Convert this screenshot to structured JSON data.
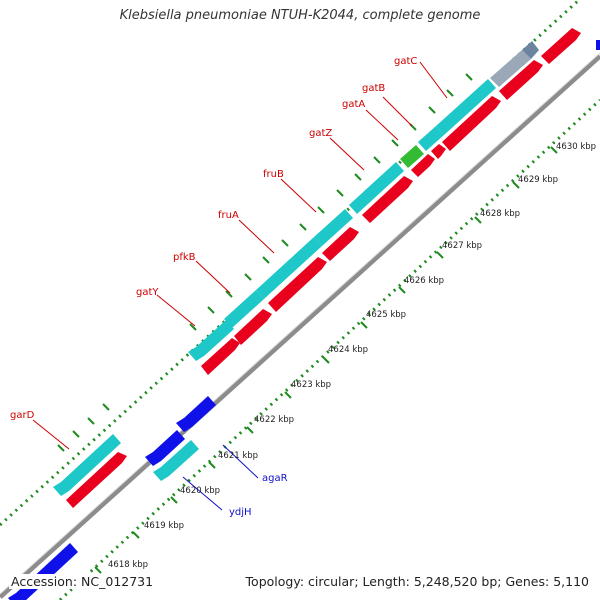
{
  "title": "Klebsiella pneumoniae NTUH-K2044, complete genome",
  "accession": {
    "label": "Accession:",
    "value": "NC_012731"
  },
  "summary": {
    "topology_label": "Topology:",
    "topology": "circular",
    "length_label": "Length:",
    "length": "5,248,520 bp",
    "genes_label": "Genes:",
    "genes": "5,110"
  },
  "colors": {
    "forward_gene": "#e8001c",
    "reverse_gene": "#1ec8c8",
    "reverse_gene_alt": "#1010e8",
    "highlight_gene": "#33bb33",
    "grey_gene": "#9aa8b8",
    "backbone": "#8c8c8c",
    "tick": "#1f8a1f",
    "scale_label": "#222222",
    "gene_label_red": "#cc0000",
    "gene_label_blue": "#1010cc"
  },
  "scale_ticks": [
    "4618 kbp",
    "4619 kbp",
    "4620 kbp",
    "4621 kbp",
    "4622 kbp",
    "4623 kbp",
    "4624 kbp",
    "4625 kbp",
    "4626 kbp",
    "4627 kbp",
    "4628 kbp",
    "4629 kbp",
    "4630 kbp"
  ],
  "gene_labels_upper": [
    "gatC",
    "gatB",
    "gatA",
    "gatZ",
    "fruB",
    "fruA",
    "pfkB",
    "gatY",
    "garD"
  ],
  "gene_labels_lower": [
    "agaR",
    "ydjH"
  ]
}
